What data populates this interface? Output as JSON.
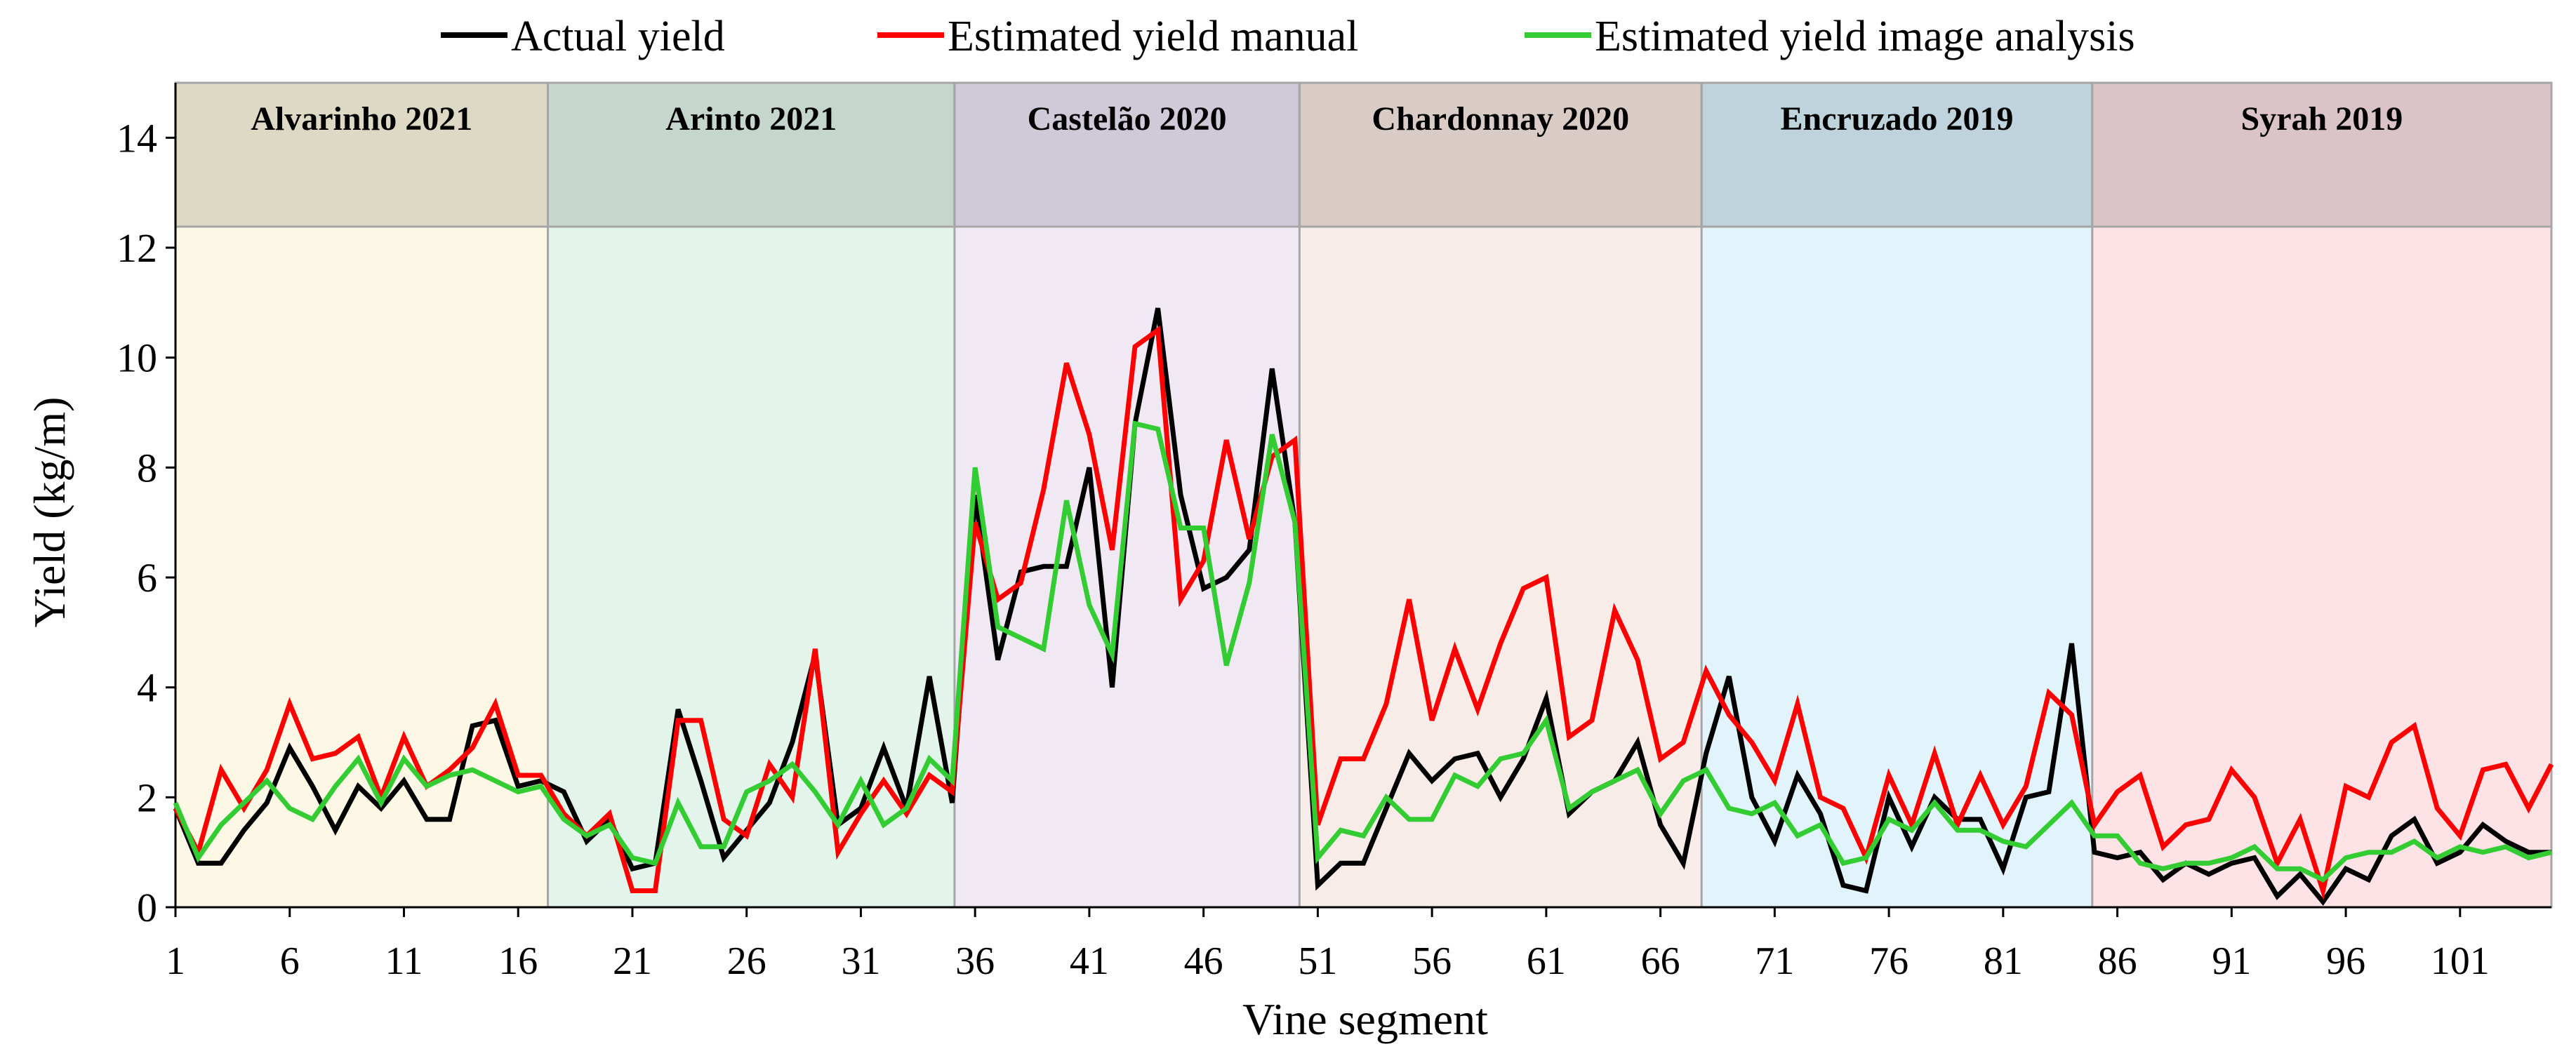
{
  "chart_data": {
    "type": "line",
    "title": "",
    "xlabel": "Vine segment",
    "ylabel": "Yield (kg/m)",
    "xlim": [
      1,
      105
    ],
    "ylim": [
      0,
      15
    ],
    "grid": false,
    "legend_position": "top-center",
    "y_ticks": [
      0,
      2,
      4,
      6,
      8,
      10,
      12,
      14
    ],
    "y_tick_labels": [
      "0",
      "2",
      "4",
      "6",
      "8",
      "10",
      "12",
      "14"
    ],
    "x_ticks": [
      1,
      6,
      11,
      16,
      21,
      26,
      31,
      36,
      41,
      46,
      51,
      56,
      61,
      66,
      71,
      76,
      81,
      86,
      91,
      96,
      101
    ],
    "x_tick_labels": [
      "1",
      "6",
      "11",
      "16",
      "21",
      "26",
      "31",
      "36",
      "41",
      "46",
      "51",
      "56",
      "61",
      "66",
      "71",
      "76",
      "81",
      "86",
      "91",
      "96",
      "101"
    ],
    "bands": [
      {
        "label": "Alvarinho 2021",
        "start": 1,
        "end": 17.3,
        "header_color": "#ddd9c4",
        "fill_color": "#fdf7e6"
      },
      {
        "label": "Arinto 2021",
        "start": 17.3,
        "end": 35.1,
        "header_color": "#c5d6cd",
        "fill_color": "#e3f4ea"
      },
      {
        "label": "Castelão 2020",
        "start": 35.1,
        "end": 50.2,
        "header_color": "#d0c9d8",
        "fill_color": "#f0e9f4"
      },
      {
        "label": "Chardonnay 2020",
        "start": 50.2,
        "end": 67.8,
        "header_color": "#d9cbc6",
        "fill_color": "#f8ece8"
      },
      {
        "label": "Encruzado 2019",
        "start": 67.8,
        "end": 84.9,
        "header_color": "#bfd3dc",
        "fill_color": "#e1f3fb"
      },
      {
        "label": "Syrah 2019",
        "start": 84.9,
        "end": 105,
        "header_color": "#dbc4c7",
        "fill_color": "#fde2e6"
      }
    ],
    "x": [
      1,
      2,
      3,
      4,
      5,
      6,
      7,
      8,
      9,
      10,
      11,
      12,
      13,
      14,
      15,
      16,
      17,
      18,
      19,
      20,
      21,
      22,
      23,
      24,
      25,
      26,
      27,
      28,
      29,
      30,
      31,
      32,
      33,
      34,
      35,
      36,
      37,
      38,
      39,
      40,
      41,
      42,
      43,
      44,
      45,
      46,
      47,
      48,
      49,
      50,
      51,
      52,
      53,
      54,
      55,
      56,
      57,
      58,
      59,
      60,
      61,
      62,
      63,
      64,
      65,
      66,
      67,
      68,
      69,
      70,
      71,
      72,
      73,
      74,
      75,
      76,
      77,
      78,
      79,
      80,
      81,
      82,
      83,
      84,
      85,
      86,
      87,
      88,
      89,
      90,
      91,
      92,
      93,
      94,
      95,
      96,
      97,
      98,
      99,
      100,
      101,
      102,
      103,
      104,
      105
    ],
    "series": [
      {
        "name": "Actual yield",
        "color": "#000000",
        "values": [
          1.8,
          0.8,
          0.8,
          1.4,
          1.9,
          2.9,
          2.2,
          1.4,
          2.2,
          1.8,
          2.3,
          1.6,
          1.6,
          3.3,
          3.4,
          2.2,
          2.3,
          2.1,
          1.2,
          1.6,
          0.7,
          0.8,
          3.6,
          2.3,
          0.9,
          1.4,
          1.9,
          3.0,
          4.6,
          1.5,
          1.8,
          2.9,
          1.8,
          4.2,
          1.9,
          7.5,
          4.5,
          6.1,
          6.2,
          6.2,
          8.0,
          4.0,
          8.8,
          10.9,
          7.5,
          5.8,
          6.0,
          6.5,
          9.8,
          7.0,
          0.4,
          0.8,
          0.8,
          1.8,
          2.8,
          2.3,
          2.7,
          2.8,
          2.0,
          2.7,
          3.8,
          1.7,
          2.1,
          2.3,
          3.0,
          1.5,
          0.8,
          2.8,
          4.2,
          2.0,
          1.2,
          2.4,
          1.7,
          0.4,
          0.3,
          2.0,
          1.1,
          2.0,
          1.6,
          1.6,
          0.7,
          2.0,
          2.1,
          4.8,
          1.0,
          0.9,
          1.0,
          0.5,
          0.8,
          0.6,
          0.8,
          0.9,
          0.2,
          0.6,
          0.1,
          0.7,
          0.5,
          1.3,
          1.6,
          0.8,
          1.0,
          1.5,
          1.2,
          1.0,
          1.0
        ]
      },
      {
        "name": "Estimated yield manual",
        "color": "#ff0000",
        "values": [
          1.8,
          1.0,
          2.5,
          1.8,
          2.5,
          3.7,
          2.7,
          2.8,
          3.1,
          2.0,
          3.1,
          2.2,
          2.5,
          2.9,
          3.7,
          2.4,
          2.4,
          1.7,
          1.3,
          1.7,
          0.3,
          0.3,
          3.4,
          3.4,
          1.6,
          1.3,
          2.6,
          2.0,
          4.7,
          1.0,
          1.7,
          2.3,
          1.7,
          2.4,
          2.1,
          7.0,
          5.6,
          5.9,
          7.6,
          9.9,
          8.6,
          6.5,
          10.2,
          10.5,
          5.6,
          6.3,
          8.5,
          6.7,
          8.2,
          8.5,
          1.5,
          2.7,
          2.7,
          3.7,
          5.6,
          3.4,
          4.7,
          3.6,
          4.8,
          5.8,
          6.0,
          3.1,
          3.4,
          5.4,
          4.5,
          2.7,
          3.0,
          4.3,
          3.5,
          3.0,
          2.3,
          3.7,
          2.0,
          1.8,
          0.9,
          2.4,
          1.5,
          2.8,
          1.5,
          2.4,
          1.5,
          2.2,
          3.9,
          3.5,
          1.5,
          2.1,
          2.4,
          1.1,
          1.5,
          1.6,
          2.5,
          2.0,
          0.8,
          1.6,
          0.3,
          2.2,
          2.0,
          3.0,
          3.3,
          1.8,
          1.3,
          2.5,
          2.6,
          1.8,
          2.6
        ]
      },
      {
        "name": "Estimated yield image analysis",
        "color": "#33cc33",
        "values": [
          1.9,
          0.9,
          1.5,
          1.9,
          2.3,
          1.8,
          1.6,
          2.2,
          2.7,
          1.9,
          2.7,
          2.2,
          2.4,
          2.5,
          2.3,
          2.1,
          2.2,
          1.6,
          1.3,
          1.5,
          0.9,
          0.8,
          1.9,
          1.1,
          1.1,
          2.1,
          2.3,
          2.6,
          2.1,
          1.5,
          2.3,
          1.5,
          1.8,
          2.7,
          2.3,
          8.0,
          5.1,
          4.9,
          4.7,
          7.4,
          5.5,
          4.6,
          8.8,
          8.7,
          6.9,
          6.9,
          4.4,
          5.9,
          8.6,
          7.0,
          0.9,
          1.4,
          1.3,
          2.0,
          1.6,
          1.6,
          2.4,
          2.2,
          2.7,
          2.8,
          3.4,
          1.8,
          2.1,
          2.3,
          2.5,
          1.7,
          2.3,
          2.5,
          1.8,
          1.7,
          1.9,
          1.3,
          1.5,
          0.8,
          0.9,
          1.6,
          1.4,
          1.9,
          1.4,
          1.4,
          1.2,
          1.1,
          1.5,
          1.9,
          1.3,
          1.3,
          0.8,
          0.7,
          0.8,
          0.8,
          0.9,
          1.1,
          0.7,
          0.7,
          0.5,
          0.9,
          1.0,
          1.0,
          1.2,
          0.9,
          1.1,
          1.0,
          1.1,
          0.9,
          1.0
        ]
      }
    ]
  }
}
